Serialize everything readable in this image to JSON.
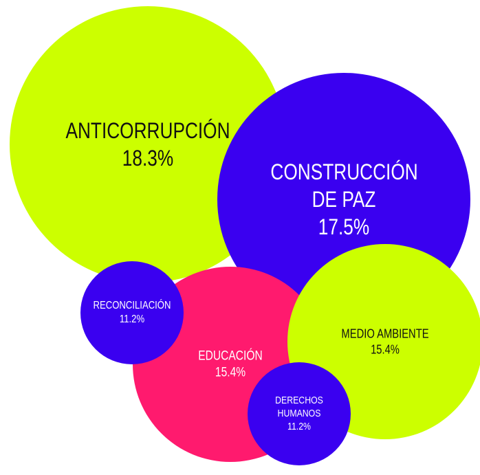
{
  "chart_data": {
    "type": "bubble",
    "categories": [
      "ANTICORRUPCIÓN",
      "CONSTRUCCIÓN DE PAZ",
      "EDUCACIÓN",
      "RECONCILIACIÓN",
      "MEDIO AMBIENTE",
      "DERECHOS HUMANOS"
    ],
    "values": [
      18.3,
      17.5,
      15.4,
      11.2,
      15.4,
      11.2
    ],
    "value_labels": [
      "18.3%",
      "17.5%",
      "15.4%",
      "11.2%",
      "15.4%",
      "11.2%"
    ],
    "colors": [
      "#ccff00",
      "#3a00f0",
      "#ff1a6e",
      "#3a00f0",
      "#ccff00",
      "#3a00f0"
    ]
  }
}
